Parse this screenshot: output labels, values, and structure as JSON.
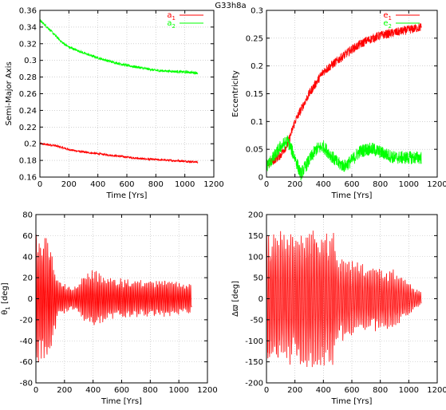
{
  "figure_title": "G33h8a",
  "colors": {
    "red": "#ff0000",
    "green": "#00ff00"
  },
  "chart_data": [
    {
      "type": "line",
      "panel": "top-left",
      "xlabel": "Time [Yrs]",
      "ylabel": "Semi-Major Axis",
      "xlim": [
        0,
        1200
      ],
      "ylim": [
        0.16,
        0.36
      ],
      "xticks": [
        0,
        200,
        400,
        600,
        800,
        1000,
        1200
      ],
      "xtick_labels": [
        "0",
        "200",
        "400",
        "600",
        "800",
        "1000",
        "1200"
      ],
      "yticks": [
        0.16,
        0.18,
        0.2,
        0.22,
        0.24,
        0.26,
        0.28,
        0.3,
        0.32,
        0.34,
        0.36
      ],
      "ytick_labels": [
        "0.16",
        "0.18",
        "0.2",
        "0.22",
        "0.24",
        "0.26",
        "0.28",
        "0.3",
        "0.32",
        "0.34",
        "0.36"
      ],
      "grid": true,
      "legend": "top-right",
      "series": [
        {
          "name": "a1",
          "label_main": "a",
          "label_sub": "1",
          "color": "#ff0000",
          "x": [
            0,
            100,
            200,
            300,
            400,
            500,
            600,
            700,
            800,
            900,
            1000,
            1090
          ],
          "y": [
            0.2,
            0.198,
            0.193,
            0.19,
            0.188,
            0.186,
            0.184,
            0.182,
            0.181,
            0.18,
            0.179,
            0.178
          ],
          "noise": 0.0012
        },
        {
          "name": "a2",
          "label_main": "a",
          "label_sub": "2",
          "color": "#00ff00",
          "x": [
            0,
            50,
            100,
            150,
            200,
            300,
            400,
            500,
            600,
            700,
            800,
            900,
            1000,
            1090
          ],
          "y": [
            0.348,
            0.34,
            0.331,
            0.322,
            0.316,
            0.309,
            0.303,
            0.298,
            0.294,
            0.291,
            0.288,
            0.287,
            0.286,
            0.285
          ],
          "noise": 0.0015
        }
      ]
    },
    {
      "type": "line",
      "panel": "top-right",
      "xlabel": "Time [Yrs]",
      "ylabel": "Eccentricity",
      "xlim": [
        0,
        1200
      ],
      "ylim": [
        0,
        0.3
      ],
      "xticks": [
        0,
        200,
        400,
        600,
        800,
        1000,
        1200
      ],
      "xtick_labels": [
        "0",
        "200",
        "400",
        "600",
        "800",
        "1000",
        "1200"
      ],
      "yticks": [
        0,
        0.05,
        0.1,
        0.15,
        0.2,
        0.25,
        0.3
      ],
      "ytick_labels": [
        "0",
        "0.05",
        "0.1",
        "0.15",
        "0.2",
        "0.25",
        "0.3"
      ],
      "grid": true,
      "legend": "top-right",
      "series": [
        {
          "name": "e1",
          "label_main": "e",
          "label_sub": "1",
          "color": "#ff0000",
          "x": [
            0,
            100,
            150,
            200,
            300,
            400,
            500,
            600,
            700,
            800,
            900,
            1000,
            1090
          ],
          "y": [
            0.02,
            0.04,
            0.06,
            0.1,
            0.15,
            0.19,
            0.21,
            0.23,
            0.245,
            0.255,
            0.26,
            0.265,
            0.27
          ],
          "noise": 0.008
        },
        {
          "name": "e2",
          "label_main": "e",
          "label_sub": "2",
          "color": "#00ff00",
          "x": [
            0,
            50,
            100,
            150,
            200,
            240,
            300,
            350,
            400,
            450,
            500,
            550,
            600,
            650,
            700,
            750,
            800,
            850,
            900,
            950,
            1000,
            1090
          ],
          "y": [
            0.02,
            0.035,
            0.055,
            0.065,
            0.035,
            0.005,
            0.03,
            0.05,
            0.055,
            0.04,
            0.025,
            0.02,
            0.03,
            0.045,
            0.05,
            0.05,
            0.045,
            0.04,
            0.035,
            0.035,
            0.035,
            0.035
          ],
          "noise": 0.012
        }
      ]
    },
    {
      "type": "line",
      "panel": "bottom-left",
      "xlabel": "Time [Yrs]",
      "ylabel_main": "θ",
      "ylabel_sub": "1",
      "ylabel_unit": "[deg]",
      "xlim": [
        0,
        1200
      ],
      "ylim": [
        -80,
        80
      ],
      "xticks": [
        0,
        200,
        400,
        600,
        800,
        1000,
        1200
      ],
      "xtick_labels": [
        "0",
        "200",
        "400",
        "600",
        "800",
        "1000",
        "1200"
      ],
      "yticks": [
        -80,
        -60,
        -40,
        -20,
        0,
        20,
        40,
        60,
        80
      ],
      "ytick_labels": [
        "-80",
        "-60",
        "-40",
        "-20",
        "0",
        "20",
        "40",
        "60",
        "80"
      ],
      "grid": true,
      "series": [
        {
          "name": "theta1",
          "color": "#ff0000",
          "envelope_x": [
            0,
            50,
            100,
            150,
            200,
            250,
            300,
            350,
            400,
            450,
            500,
            600,
            700,
            800,
            900,
            1000,
            1090
          ],
          "envelope_amp": [
            65,
            60,
            55,
            20,
            15,
            10,
            15,
            25,
            28,
            25,
            22,
            20,
            18,
            18,
            18,
            16,
            15
          ],
          "period": 10
        }
      ]
    },
    {
      "type": "line",
      "panel": "bottom-right",
      "xlabel": "Time [Yrs]",
      "ylabel_main": "Δϖ",
      "ylabel_unit": "[deg]",
      "xlim": [
        0,
        1200
      ],
      "ylim": [
        -200,
        200
      ],
      "xticks": [
        0,
        200,
        400,
        600,
        800,
        1000,
        1200
      ],
      "xtick_labels": [
        "0",
        "200",
        "400",
        "600",
        "800",
        "1000",
        "1200"
      ],
      "yticks": [
        -200,
        -150,
        -100,
        -50,
        0,
        50,
        100,
        150,
        200
      ],
      "ytick_labels": [
        "-200",
        "-150",
        "-100",
        "-50",
        "0",
        "50",
        "100",
        "150",
        "200"
      ],
      "grid": true,
      "series": [
        {
          "name": "delta-varpi",
          "color": "#ff0000",
          "envelope_x": [
            0,
            50,
            100,
            150,
            200,
            250,
            300,
            350,
            400,
            450,
            480,
            500,
            550,
            600,
            700,
            800,
            900,
            1000,
            1090
          ],
          "envelope_amp": [
            170,
            170,
            165,
            160,
            160,
            170,
            170,
            170,
            165,
            160,
            160,
            110,
            100,
            90,
            85,
            80,
            70,
            40,
            15
          ],
          "period": 12
        }
      ]
    }
  ]
}
